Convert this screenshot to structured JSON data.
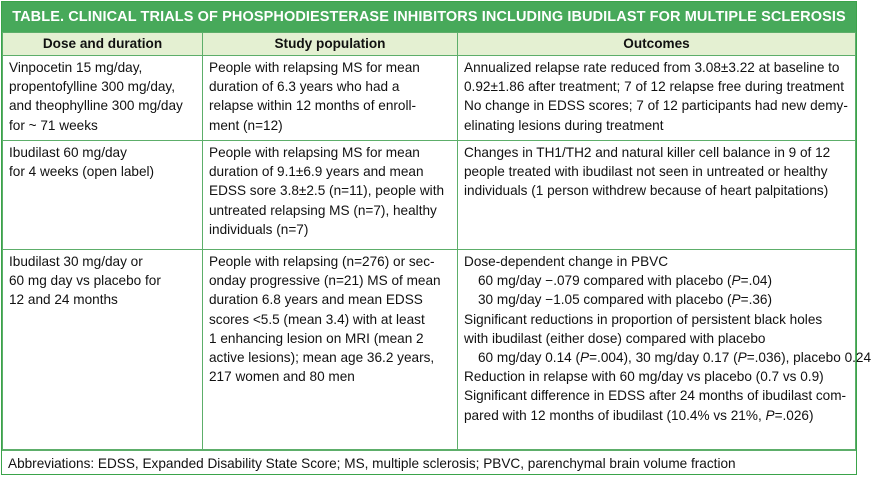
{
  "title": "TABLE. CLINICAL TRIALS OF PHOSPHODIESTERASE INHIBITORS INCLUDING IBUDILAST FOR MULTIPLE SCLEROSIS",
  "headers": [
    "Dose and duration",
    "Study population",
    "Outcomes"
  ],
  "rows": [
    {
      "dose": [
        "Vinpocetin 15 mg/day,",
        "propentofylline 300 mg/day,",
        "and theophylline 300 mg/day",
        "for ~ 71 weeks"
      ],
      "population": [
        "People with relapsing MS for mean",
        "duration of 6.3 years who had a",
        "relapse within 12 months of enroll-",
        "ment (n=12)"
      ],
      "outcomes": [
        "Annualized relapse rate reduced from 3.08±3.22 at baseline to",
        "0.92±1.86 after treatment; 7 of 12 relapse free during treatment",
        "No change in EDSS scores; 7 of 12 participants had new demy-",
        "elinating lesions during treatment"
      ]
    },
    {
      "dose": [
        "Ibudilast 60 mg/day",
        "for 4 weeks (open label)"
      ],
      "population": [
        "People with relapsing MS for mean",
        "duration of 9.1±6.9 years and mean",
        "EDSS sore 3.8±2.5 (n=11), people with",
        "untreated relapsing MS (n=7), healthy",
        "individuals (n=7)"
      ],
      "outcomes": [
        "Changes in TH1/TH2 and natural killer cell balance in 9 of 12",
        "people treated with ibudilast not seen in untreated or healthy",
        "individuals (1 person withdrew because of heart palpitations)"
      ]
    },
    {
      "dose": [
        "Ibudilast 30 mg/day or",
        "60 mg day vs placebo for",
        "12 and 24 months"
      ],
      "population": [
        "People with relapsing (n=276) or sec-",
        "onday progressive (n=21) MS of mean",
        "duration 6.8 years and mean EDSS",
        "scores <5.5 (mean 3.4) with at least",
        "1 enhancing lesion on MRI (mean 2",
        "active lesions); mean age 36.2 years,",
        "217 women and 80 men"
      ],
      "outcomes": [
        {
          "text": "Dose-dependent change in PBVC",
          "indent": false
        },
        {
          "text": "60 mg/day −.079 compared with placebo (P=.04)",
          "indent": true
        },
        {
          "text": "30 mg/day −1.05 compared with placebo (P=.36)",
          "indent": true
        },
        {
          "text": "Significant reductions in proportion of persistent black holes",
          "indent": false
        },
        {
          "text": "with ibudilast (either dose) compared with placebo",
          "indent": false
        },
        {
          "text": "60 mg/day 0.14 (P=.004), 30 mg/day 0.17 (P=.036), placebo 0.24",
          "indent": true
        },
        {
          "text": "Reduction in relapse with 60 mg/day vs placebo (0.7 vs 0.9)",
          "indent": false
        },
        {
          "text": "Significant difference in EDSS after 24 months of ibudilast com-",
          "indent": false
        },
        {
          "text": "pared with 12 months of ibudilast (10.4% vs 21%, P=.026)",
          "indent": false
        }
      ]
    }
  ],
  "footnote": "Abbreviations: EDSS, Expanded Disability State Score; MS, multiple sclerosis; PBVC, parenchymal brain volume fraction"
}
